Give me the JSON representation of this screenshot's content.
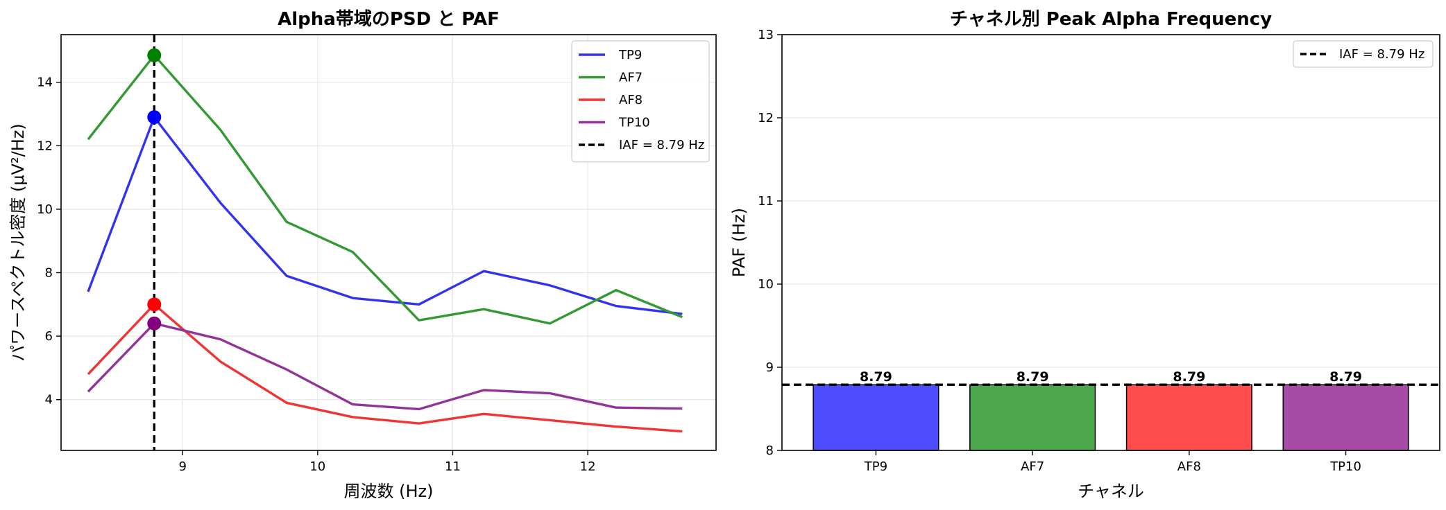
{
  "chart_data": [
    {
      "type": "line",
      "title": "Alpha帯域のPSD と PAF",
      "xlabel": "周波数 (Hz)",
      "ylabel": "パワースペクトル密度 (μV²/Hz)",
      "xlim": [
        8.1,
        12.95
      ],
      "ylim": [
        2.4,
        15.5
      ],
      "xticks": [
        9,
        10,
        11,
        12
      ],
      "yticks": [
        4,
        6,
        8,
        10,
        12,
        14
      ],
      "grid": true,
      "legend_position": "top-right",
      "x": [
        8.3,
        8.79,
        9.28,
        9.77,
        10.26,
        10.75,
        11.23,
        11.72,
        12.21,
        12.7
      ],
      "series": [
        {
          "name": "TP9",
          "color": "#3333ee",
          "values": [
            7.4,
            12.9,
            10.2,
            7.9,
            7.2,
            7.0,
            8.05,
            7.6,
            6.95,
            6.7
          ]
        },
        {
          "name": "AF7",
          "color": "#339933",
          "values": [
            12.2,
            14.85,
            12.5,
            9.6,
            8.65,
            6.5,
            6.85,
            6.4,
            7.45,
            6.6
          ]
        },
        {
          "name": "AF8",
          "color": "#f03333",
          "values": [
            4.8,
            7.0,
            5.2,
            3.9,
            3.45,
            3.25,
            3.55,
            3.35,
            3.15,
            3.0
          ]
        },
        {
          "name": "TP10",
          "color": "#913399",
          "values": [
            4.25,
            6.4,
            5.9,
            4.95,
            3.85,
            3.7,
            4.3,
            4.2,
            3.75,
            3.72
          ]
        }
      ],
      "peaks": [
        {
          "series": "TP9",
          "x": 8.79,
          "y": 12.9,
          "color": "#0000ff"
        },
        {
          "series": "AF7",
          "x": 8.79,
          "y": 14.85,
          "color": "#008000"
        },
        {
          "series": "AF8",
          "x": 8.79,
          "y": 7.0,
          "color": "#ff0000"
        },
        {
          "series": "TP10",
          "x": 8.79,
          "y": 6.4,
          "color": "#800080"
        }
      ],
      "reference_line": {
        "orientation": "vertical",
        "value": 8.79,
        "label": "IAF = 8.79 Hz",
        "color": "#000000"
      }
    },
    {
      "type": "bar",
      "title": "チャネル別 Peak Alpha Frequency",
      "xlabel": "チャネル",
      "ylabel": "PAF (Hz)",
      "ylim": [
        8,
        13
      ],
      "yticks": [
        8,
        9,
        10,
        11,
        12,
        13
      ],
      "grid": true,
      "legend_position": "top-right",
      "categories": [
        "TP9",
        "AF7",
        "AF8",
        "TP10"
      ],
      "values": [
        8.79,
        8.79,
        8.79,
        8.79
      ],
      "value_labels": [
        "8.79",
        "8.79",
        "8.79",
        "8.79"
      ],
      "colors": [
        "#4d4dff",
        "#4ca64c",
        "#ff4d4d",
        "#a64ca6"
      ],
      "reference_line": {
        "orientation": "horizontal",
        "value": 8.79,
        "label": "IAF = 8.79 Hz",
        "color": "#000000"
      }
    }
  ]
}
